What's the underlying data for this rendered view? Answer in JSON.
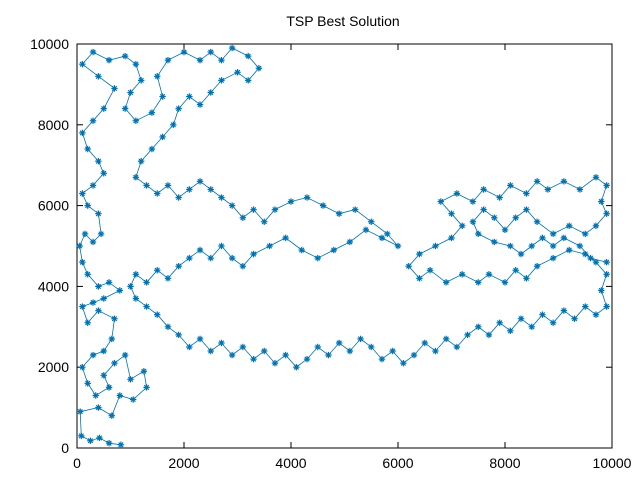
{
  "chart_data": {
    "type": "line",
    "title": "TSP Best Solution",
    "xlabel": "",
    "ylabel": "",
    "xlim": [
      0,
      10000
    ],
    "ylim": [
      0,
      10000
    ],
    "x_ticks": [
      "0",
      "2000",
      "4000",
      "6000",
      "8000",
      "10000"
    ],
    "y_ticks": [
      "0",
      "2000",
      "4000",
      "6000",
      "8000",
      "10000"
    ],
    "grid": false,
    "legend": "none",
    "series_color": "#0072b2",
    "marker": "star",
    "series": [
      {
        "points": [
          [
            820,
            80
          ],
          [
            600,
            120
          ],
          [
            420,
            250
          ],
          [
            250,
            180
          ],
          [
            80,
            300
          ],
          [
            60,
            900
          ],
          [
            400,
            1000
          ],
          [
            650,
            800
          ],
          [
            800,
            1300
          ],
          [
            1050,
            1200
          ],
          [
            1300,
            1500
          ],
          [
            1250,
            1900
          ],
          [
            1000,
            1700
          ],
          [
            900,
            2300
          ],
          [
            700,
            2100
          ],
          [
            500,
            1800
          ],
          [
            600,
            1500
          ],
          [
            350,
            1300
          ],
          [
            200,
            1600
          ],
          [
            100,
            2000
          ],
          [
            300,
            2300
          ],
          [
            500,
            2400
          ],
          [
            650,
            2700
          ],
          [
            700,
            3200
          ],
          [
            400,
            3400
          ],
          [
            200,
            3100
          ],
          [
            100,
            3500
          ],
          [
            300,
            3600
          ],
          [
            500,
            3700
          ],
          [
            800,
            3900
          ],
          [
            600,
            4100
          ],
          [
            400,
            4000
          ],
          [
            200,
            4300
          ],
          [
            100,
            4600
          ],
          [
            50,
            5000
          ],
          [
            150,
            5300
          ],
          [
            300,
            5100
          ],
          [
            450,
            5300
          ],
          [
            400,
            5800
          ],
          [
            200,
            6000
          ],
          [
            100,
            6300
          ],
          [
            300,
            6500
          ],
          [
            500,
            6800
          ],
          [
            400,
            7100
          ],
          [
            200,
            7400
          ],
          [
            100,
            7800
          ],
          [
            300,
            8100
          ],
          [
            500,
            8400
          ],
          [
            700,
            8900
          ],
          [
            400,
            9200
          ],
          [
            100,
            9500
          ],
          [
            300,
            9800
          ],
          [
            600,
            9600
          ],
          [
            900,
            9700
          ],
          [
            1100,
            9500
          ],
          [
            1200,
            9100
          ],
          [
            1000,
            8800
          ],
          [
            900,
            8400
          ],
          [
            1100,
            8100
          ],
          [
            1400,
            8300
          ],
          [
            1600,
            8700
          ],
          [
            1500,
            9200
          ],
          [
            1700,
            9600
          ],
          [
            2000,
            9800
          ],
          [
            2300,
            9600
          ],
          [
            2500,
            9800
          ],
          [
            2700,
            9600
          ],
          [
            2900,
            9900
          ],
          [
            3200,
            9700
          ],
          [
            3400,
            9400
          ],
          [
            3200,
            9100
          ],
          [
            3000,
            9300
          ],
          [
            2700,
            9100
          ],
          [
            2500,
            8800
          ],
          [
            2300,
            8500
          ],
          [
            2100,
            8700
          ],
          [
            1900,
            8400
          ],
          [
            1800,
            8000
          ],
          [
            1600,
            7700
          ],
          [
            1400,
            7400
          ],
          [
            1200,
            7100
          ],
          [
            1100,
            6700
          ],
          [
            1300,
            6500
          ],
          [
            1500,
            6300
          ],
          [
            1700,
            6500
          ],
          [
            1900,
            6200
          ],
          [
            2100,
            6400
          ],
          [
            2300,
            6600
          ],
          [
            2500,
            6400
          ],
          [
            2700,
            6200
          ],
          [
            2900,
            6000
          ],
          [
            3100,
            5700
          ],
          [
            3300,
            5900
          ],
          [
            3500,
            5600
          ],
          [
            3700,
            5900
          ],
          [
            4000,
            6100
          ],
          [
            4300,
            6200
          ],
          [
            4600,
            6000
          ],
          [
            4900,
            5800
          ],
          [
            5200,
            5900
          ],
          [
            5500,
            5600
          ],
          [
            5800,
            5300
          ],
          [
            6000,
            5000
          ],
          [
            5700,
            5200
          ],
          [
            5400,
            5400
          ],
          [
            5100,
            5100
          ],
          [
            4800,
            4900
          ],
          [
            4500,
            4700
          ],
          [
            4200,
            4900
          ],
          [
            3900,
            5200
          ],
          [
            3600,
            5000
          ],
          [
            3300,
            4800
          ],
          [
            3100,
            4500
          ],
          [
            2900,
            4700
          ],
          [
            2700,
            5000
          ],
          [
            2500,
            4700
          ],
          [
            2300,
            4900
          ],
          [
            2100,
            4700
          ],
          [
            1900,
            4500
          ],
          [
            1700,
            4200
          ],
          [
            1500,
            4400
          ],
          [
            1300,
            4100
          ],
          [
            1100,
            4300
          ],
          [
            1000,
            4000
          ],
          [
            1100,
            3700
          ],
          [
            1300,
            3500
          ],
          [
            1500,
            3300
          ],
          [
            1700,
            3000
          ],
          [
            1900,
            2800
          ],
          [
            2100,
            2500
          ],
          [
            2300,
            2700
          ],
          [
            2500,
            2400
          ],
          [
            2700,
            2600
          ],
          [
            2900,
            2300
          ],
          [
            3100,
            2500
          ],
          [
            3300,
            2200
          ],
          [
            3500,
            2400
          ],
          [
            3700,
            2100
          ],
          [
            3900,
            2300
          ],
          [
            4100,
            2000
          ],
          [
            4300,
            2200
          ],
          [
            4500,
            2500
          ],
          [
            4700,
            2300
          ],
          [
            4900,
            2600
          ],
          [
            5100,
            2400
          ],
          [
            5300,
            2700
          ],
          [
            5500,
            2500
          ],
          [
            5700,
            2200
          ],
          [
            5900,
            2400
          ],
          [
            6100,
            2100
          ],
          [
            6300,
            2300
          ],
          [
            6500,
            2600
          ],
          [
            6700,
            2400
          ],
          [
            6900,
            2700
          ],
          [
            7100,
            2500
          ],
          [
            7300,
            2800
          ],
          [
            7500,
            3000
          ],
          [
            7700,
            2800
          ],
          [
            7900,
            3100
          ],
          [
            8100,
            2900
          ],
          [
            8300,
            3200
          ],
          [
            8500,
            3000
          ],
          [
            8700,
            3300
          ],
          [
            8900,
            3100
          ],
          [
            9100,
            3400
          ],
          [
            9300,
            3200
          ],
          [
            9500,
            3500
          ],
          [
            9700,
            3300
          ],
          [
            9900,
            3500
          ],
          [
            9800,
            3900
          ],
          [
            9900,
            4300
          ],
          [
            9700,
            4600
          ],
          [
            9500,
            4800
          ],
          [
            9200,
            4900
          ],
          [
            8900,
            4700
          ],
          [
            8600,
            4500
          ],
          [
            8400,
            4200
          ],
          [
            8200,
            4400
          ],
          [
            8000,
            4100
          ],
          [
            7700,
            4300
          ],
          [
            7500,
            4100
          ],
          [
            7200,
            4300
          ],
          [
            6900,
            4100
          ],
          [
            6600,
            4400
          ],
          [
            6400,
            4200
          ],
          [
            6200,
            4500
          ],
          [
            6400,
            4800
          ],
          [
            6700,
            5000
          ],
          [
            7000,
            5200
          ],
          [
            7200,
            5500
          ],
          [
            7000,
            5800
          ],
          [
            6800,
            6100
          ],
          [
            7100,
            6300
          ],
          [
            7400,
            6100
          ],
          [
            7600,
            6400
          ],
          [
            7900,
            6200
          ],
          [
            8100,
            6500
          ],
          [
            8400,
            6300
          ],
          [
            8600,
            6600
          ],
          [
            8800,
            6400
          ],
          [
            9100,
            6600
          ],
          [
            9400,
            6400
          ],
          [
            9700,
            6700
          ],
          [
            9900,
            6500
          ],
          [
            9800,
            6100
          ],
          [
            9900,
            5800
          ],
          [
            9700,
            5500
          ],
          [
            9500,
            5300
          ],
          [
            9200,
            5500
          ],
          [
            8900,
            5300
          ],
          [
            8600,
            5600
          ],
          [
            8400,
            5900
          ],
          [
            8200,
            5700
          ],
          [
            8000,
            5400
          ],
          [
            7800,
            5700
          ],
          [
            7600,
            5900
          ],
          [
            7400,
            5600
          ],
          [
            7500,
            5300
          ],
          [
            7800,
            5100
          ],
          [
            8100,
            5000
          ],
          [
            8300,
            4800
          ],
          [
            8500,
            5000
          ],
          [
            8700,
            5200
          ],
          [
            8900,
            5000
          ],
          [
            9100,
            5200
          ],
          [
            9400,
            5000
          ],
          [
            9600,
            4700
          ],
          [
            9900,
            4600
          ]
        ]
      }
    ]
  }
}
